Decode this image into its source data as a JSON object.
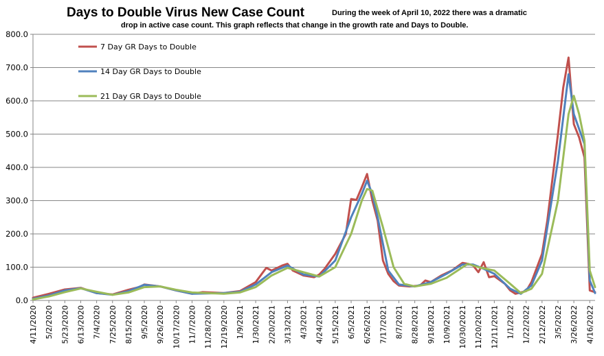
{
  "chart_data": {
    "type": "line",
    "title": "Days to Double Virus New Case Count",
    "subtitle_line1": "During the week of April 10, 2022 there was a dramatic",
    "subtitle_line2": "drop in active case count.  This graph reflects that change in the growth rate and Days to Double.",
    "ylim": [
      0,
      800
    ],
    "y_ticks": [
      "0.0",
      "100.0",
      "200.0",
      "300.0",
      "400.0",
      "500.0",
      "600.0",
      "700.0",
      "800.0"
    ],
    "grid": true,
    "legend_placement": "top-left",
    "x_start": "2020-04-11",
    "x_end": "2022-04-23",
    "x_tick_labels": [
      "4/11/2020",
      "5/2/2020",
      "5/23/2020",
      "6/13/2020",
      "7/4/2020",
      "7/25/2020",
      "8/15/2020",
      "9/5/2020",
      "9/26/2020",
      "10/17/2020",
      "11/7/2020",
      "11/28/2020",
      "12/19/2020",
      "1/9/2021",
      "1/30/2021",
      "2/20/2021",
      "3/13/2021",
      "4/3/2021",
      "4/24/2021",
      "5/15/2021",
      "6/5/2021",
      "6/26/2021",
      "7/17/2021",
      "8/7/2021",
      "8/28/2021",
      "9/18/2021",
      "10/9/2021",
      "10/30/2021",
      "11/20/2021",
      "12/11/2021",
      "1/1/2022",
      "1/22/2022",
      "2/12/2022",
      "3/5/2022",
      "3/26/2022",
      "4/16/2022"
    ],
    "series": [
      {
        "name": "7 Day GR Days to Double",
        "color": "#c0504d",
        "points": [
          [
            "2020-04-11",
            8
          ],
          [
            "2020-05-02",
            20
          ],
          [
            "2020-05-23",
            33
          ],
          [
            "2020-06-06",
            36
          ],
          [
            "2020-06-13",
            38
          ],
          [
            "2020-07-04",
            22
          ],
          [
            "2020-07-25",
            18
          ],
          [
            "2020-08-15",
            32
          ],
          [
            "2020-08-29",
            40
          ],
          [
            "2020-09-05",
            48
          ],
          [
            "2020-09-26",
            42
          ],
          [
            "2020-10-17",
            30
          ],
          [
            "2020-11-07",
            20
          ],
          [
            "2020-11-21",
            25
          ],
          [
            "2020-12-19",
            22
          ],
          [
            "2021-01-09",
            28
          ],
          [
            "2021-01-30",
            55
          ],
          [
            "2021-02-13",
            98
          ],
          [
            "2021-02-20",
            90
          ],
          [
            "2021-03-06",
            105
          ],
          [
            "2021-03-13",
            110
          ],
          [
            "2021-03-20",
            90
          ],
          [
            "2021-04-03",
            75
          ],
          [
            "2021-04-17",
            70
          ],
          [
            "2021-04-24",
            78
          ],
          [
            "2021-05-01",
            95
          ],
          [
            "2021-05-15",
            140
          ],
          [
            "2021-05-29",
            200
          ],
          [
            "2021-06-05",
            305
          ],
          [
            "2021-06-12",
            302
          ],
          [
            "2021-06-19",
            340
          ],
          [
            "2021-06-26",
            380
          ],
          [
            "2021-07-03",
            300
          ],
          [
            "2021-07-10",
            240
          ],
          [
            "2021-07-17",
            120
          ],
          [
            "2021-07-24",
            80
          ],
          [
            "2021-07-31",
            58
          ],
          [
            "2021-08-07",
            45
          ],
          [
            "2021-08-21",
            42
          ],
          [
            "2021-09-04",
            45
          ],
          [
            "2021-09-11",
            60
          ],
          [
            "2021-09-18",
            55
          ],
          [
            "2021-10-02",
            75
          ],
          [
            "2021-10-16",
            90
          ],
          [
            "2021-10-30",
            113
          ],
          [
            "2021-11-06",
            110
          ],
          [
            "2021-11-13",
            105
          ],
          [
            "2021-11-20",
            85
          ],
          [
            "2021-11-27",
            115
          ],
          [
            "2021-12-04",
            70
          ],
          [
            "2021-12-11",
            73
          ],
          [
            "2021-12-25",
            50
          ],
          [
            "2022-01-01",
            30
          ],
          [
            "2022-01-08",
            20
          ],
          [
            "2022-01-22",
            28
          ],
          [
            "2022-01-29",
            55
          ],
          [
            "2022-02-12",
            140
          ],
          [
            "2022-02-19",
            240
          ],
          [
            "2022-03-05",
            500
          ],
          [
            "2022-03-12",
            640
          ],
          [
            "2022-03-19",
            730
          ],
          [
            "2022-03-26",
            530
          ],
          [
            "2022-04-02",
            490
          ],
          [
            "2022-04-09",
            430
          ],
          [
            "2022-04-16",
            30
          ],
          [
            "2022-04-23",
            25
          ]
        ]
      },
      {
        "name": "14 Day GR Days to Double",
        "color": "#4f81bd",
        "points": [
          [
            "2020-04-11",
            5
          ],
          [
            "2020-05-02",
            15
          ],
          [
            "2020-05-23",
            30
          ],
          [
            "2020-06-13",
            37
          ],
          [
            "2020-07-04",
            22
          ],
          [
            "2020-07-25",
            17
          ],
          [
            "2020-08-15",
            28
          ],
          [
            "2020-09-05",
            47
          ],
          [
            "2020-09-26",
            42
          ],
          [
            "2020-10-17",
            30
          ],
          [
            "2020-11-07",
            20
          ],
          [
            "2020-12-19",
            22
          ],
          [
            "2021-01-09",
            26
          ],
          [
            "2021-01-30",
            48
          ],
          [
            "2021-02-20",
            85
          ],
          [
            "2021-03-13",
            105
          ],
          [
            "2021-04-03",
            78
          ],
          [
            "2021-04-24",
            72
          ],
          [
            "2021-05-15",
            120
          ],
          [
            "2021-06-05",
            250
          ],
          [
            "2021-06-19",
            320
          ],
          [
            "2021-06-26",
            360
          ],
          [
            "2021-07-03",
            320
          ],
          [
            "2021-07-10",
            250
          ],
          [
            "2021-07-24",
            90
          ],
          [
            "2021-08-07",
            48
          ],
          [
            "2021-08-28",
            42
          ],
          [
            "2021-09-18",
            55
          ],
          [
            "2021-10-09",
            80
          ],
          [
            "2021-10-30",
            108
          ],
          [
            "2021-11-13",
            108
          ],
          [
            "2021-11-27",
            95
          ],
          [
            "2021-12-11",
            80
          ],
          [
            "2022-01-01",
            35
          ],
          [
            "2022-01-15",
            20
          ],
          [
            "2022-01-29",
            45
          ],
          [
            "2022-02-12",
            120
          ],
          [
            "2022-03-05",
            420
          ],
          [
            "2022-03-19",
            680
          ],
          [
            "2022-03-26",
            560
          ],
          [
            "2022-04-09",
            470
          ],
          [
            "2022-04-16",
            60
          ],
          [
            "2022-04-23",
            22
          ]
        ]
      },
      {
        "name": "21 Day GR Days to Double",
        "color": "#9bbb59",
        "points": [
          [
            "2020-04-11",
            3
          ],
          [
            "2020-05-02",
            12
          ],
          [
            "2020-05-23",
            25
          ],
          [
            "2020-06-13",
            36
          ],
          [
            "2020-07-04",
            26
          ],
          [
            "2020-07-25",
            17
          ],
          [
            "2020-08-15",
            24
          ],
          [
            "2020-09-05",
            40
          ],
          [
            "2020-09-26",
            42
          ],
          [
            "2020-10-17",
            32
          ],
          [
            "2020-11-07",
            24
          ],
          [
            "2020-12-19",
            20
          ],
          [
            "2021-01-09",
            24
          ],
          [
            "2021-01-30",
            40
          ],
          [
            "2021-02-20",
            75
          ],
          [
            "2021-03-13",
            98
          ],
          [
            "2021-04-03",
            85
          ],
          [
            "2021-04-24",
            72
          ],
          [
            "2021-05-15",
            100
          ],
          [
            "2021-06-05",
            200
          ],
          [
            "2021-06-19",
            300
          ],
          [
            "2021-06-26",
            335
          ],
          [
            "2021-07-03",
            330
          ],
          [
            "2021-07-17",
            220
          ],
          [
            "2021-07-31",
            100
          ],
          [
            "2021-08-14",
            50
          ],
          [
            "2021-08-28",
            42
          ],
          [
            "2021-09-18",
            50
          ],
          [
            "2021-10-09",
            68
          ],
          [
            "2021-11-06",
            110
          ],
          [
            "2021-11-20",
            100
          ],
          [
            "2021-12-11",
            90
          ],
          [
            "2022-01-01",
            50
          ],
          [
            "2022-01-15",
            22
          ],
          [
            "2022-01-29",
            35
          ],
          [
            "2022-02-12",
            80
          ],
          [
            "2022-03-05",
            300
          ],
          [
            "2022-03-19",
            560
          ],
          [
            "2022-03-26",
            615
          ],
          [
            "2022-04-02",
            560
          ],
          [
            "2022-04-09",
            480
          ],
          [
            "2022-04-16",
            90
          ],
          [
            "2022-04-23",
            40
          ]
        ]
      }
    ]
  }
}
